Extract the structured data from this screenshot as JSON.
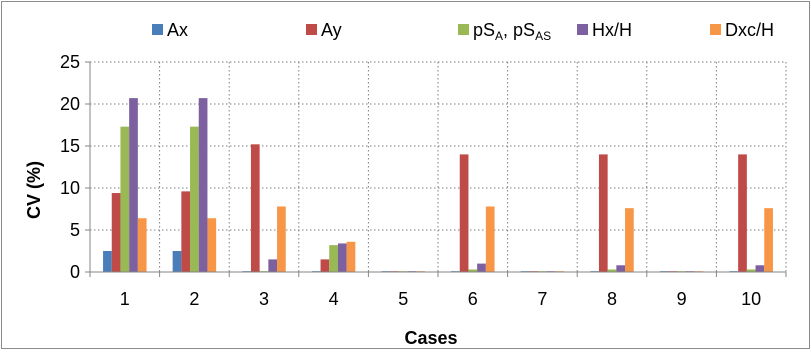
{
  "chart_data": {
    "type": "bar",
    "categories": [
      "1",
      "2",
      "3",
      "4",
      "5",
      "6",
      "7",
      "8",
      "9",
      "10"
    ],
    "xlabel": "Cases",
    "ylabel": "CV (%)",
    "ylim": [
      0,
      25
    ],
    "yticks": [
      "0",
      "5",
      "10",
      "15",
      "20",
      "25"
    ],
    "grid": "dotted, both axes",
    "legend_position": "top",
    "series": [
      {
        "name": "Ax",
        "label_base": "Ax",
        "label_rest": "",
        "color": "#4a7ebb",
        "values": [
          2.5,
          2.5,
          0.1,
          0.1,
          0.1,
          0.1,
          0.1,
          0.1,
          0.1,
          0.1
        ]
      },
      {
        "name": "Ay",
        "label_base": "Ay",
        "label_rest": "",
        "color": "#be4b48",
        "values": [
          9.4,
          9.6,
          15.2,
          1.5,
          0.1,
          14.0,
          0.1,
          14.0,
          0.1,
          14.0
        ]
      },
      {
        "name": "pS_A, pS_AS",
        "label_base": "pS",
        "label_sub1": "A",
        "label_mid": ", pS",
        "label_sub2": "AS",
        "color": "#98b954",
        "values": [
          17.3,
          17.3,
          0.1,
          3.2,
          0.1,
          0.3,
          0.1,
          0.3,
          0.1,
          0.3
        ]
      },
      {
        "name": "Hx/H",
        "label_base": "Hx/H",
        "label_rest": "",
        "color": "#7d60a0",
        "values": [
          20.7,
          20.7,
          1.5,
          3.4,
          0.1,
          1.0,
          0.1,
          0.8,
          0.1,
          0.8
        ]
      },
      {
        "name": "Dxc/H",
        "label_base": "Dxc/H",
        "label_rest": "",
        "color": "#f79646",
        "values": [
          6.4,
          6.4,
          7.8,
          3.6,
          0.1,
          7.8,
          0.1,
          7.6,
          0.1,
          7.6
        ]
      }
    ]
  }
}
